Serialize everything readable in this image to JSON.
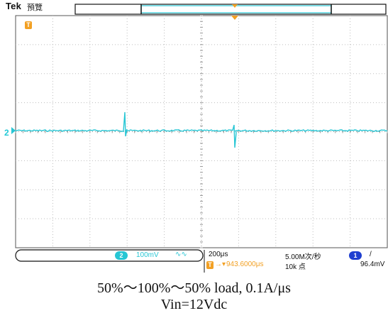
{
  "header": {
    "brand": "Tek",
    "mode": "預覽"
  },
  "trigger": {
    "marker_label": "T",
    "position": "943.6000μs"
  },
  "ch2": {
    "level_marker": "2",
    "badge": "2",
    "scale": "100mV",
    "coupling_symbol": "∿∿"
  },
  "timebase": {
    "scale": "200μs",
    "sample_rate": "5.00M次/秒",
    "record_length": "10k 点"
  },
  "ch1_trigger": {
    "badge": "1",
    "slope": "/",
    "level": "96.4mV"
  },
  "caption": {
    "line1": "50%～100%～50% load, 0.1A/μs",
    "line2": "Vin=12Vdc"
  },
  "colors": {
    "trace": "#27c6d4",
    "grid": "#bdbdbd",
    "trigger": "#f2a023",
    "ch1_badge": "#1f3fd0"
  }
}
